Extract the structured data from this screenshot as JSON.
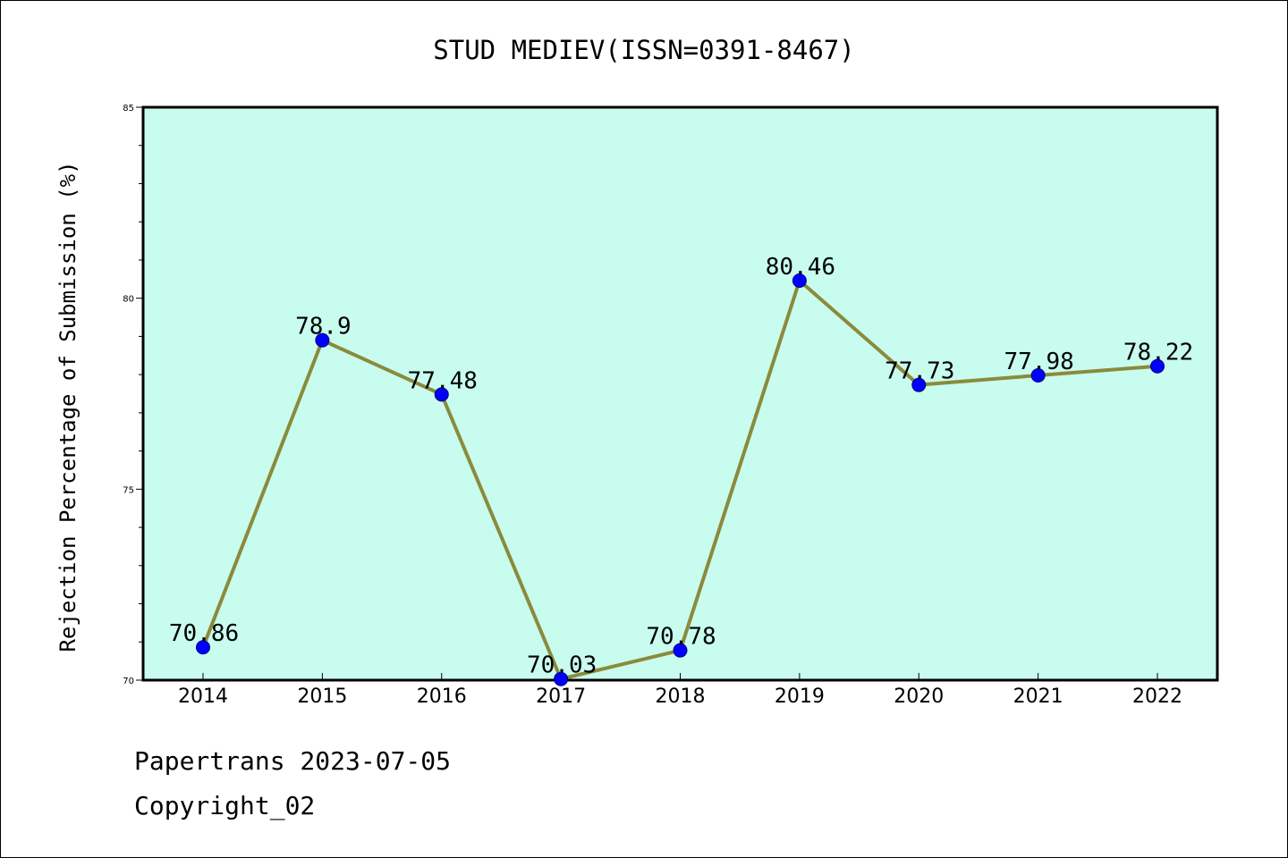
{
  "chart_data": {
    "type": "line",
    "title": "STUD MEDIEV(ISSN=0391-8467)",
    "xlabel": "",
    "ylabel": "Rejection Percentage of Submission (%)",
    "categories": [
      "2014",
      "2015",
      "2016",
      "2017",
      "2018",
      "2019",
      "2020",
      "2021",
      "2022"
    ],
    "values": [
      70.86,
      78.9,
      77.48,
      70.03,
      70.78,
      80.46,
      77.73,
      77.98,
      78.22
    ],
    "data_labels": [
      "70.86",
      "78.9",
      "77.48",
      "70.03",
      "70.78",
      "80.46",
      "77.73",
      "77.98",
      "78.22"
    ],
    "ylim": [
      70,
      85
    ],
    "yticks": [
      70,
      75,
      80,
      85
    ],
    "grid": false,
    "legend": "none",
    "colors": {
      "plot_background": "#c8fcee",
      "line": "#8b8a3c",
      "marker_fill": "#0000ff",
      "marker_edge": "#000080"
    }
  },
  "footer": {
    "line1": "Papertrans 2023-07-05",
    "line2": "Copyright_02"
  }
}
